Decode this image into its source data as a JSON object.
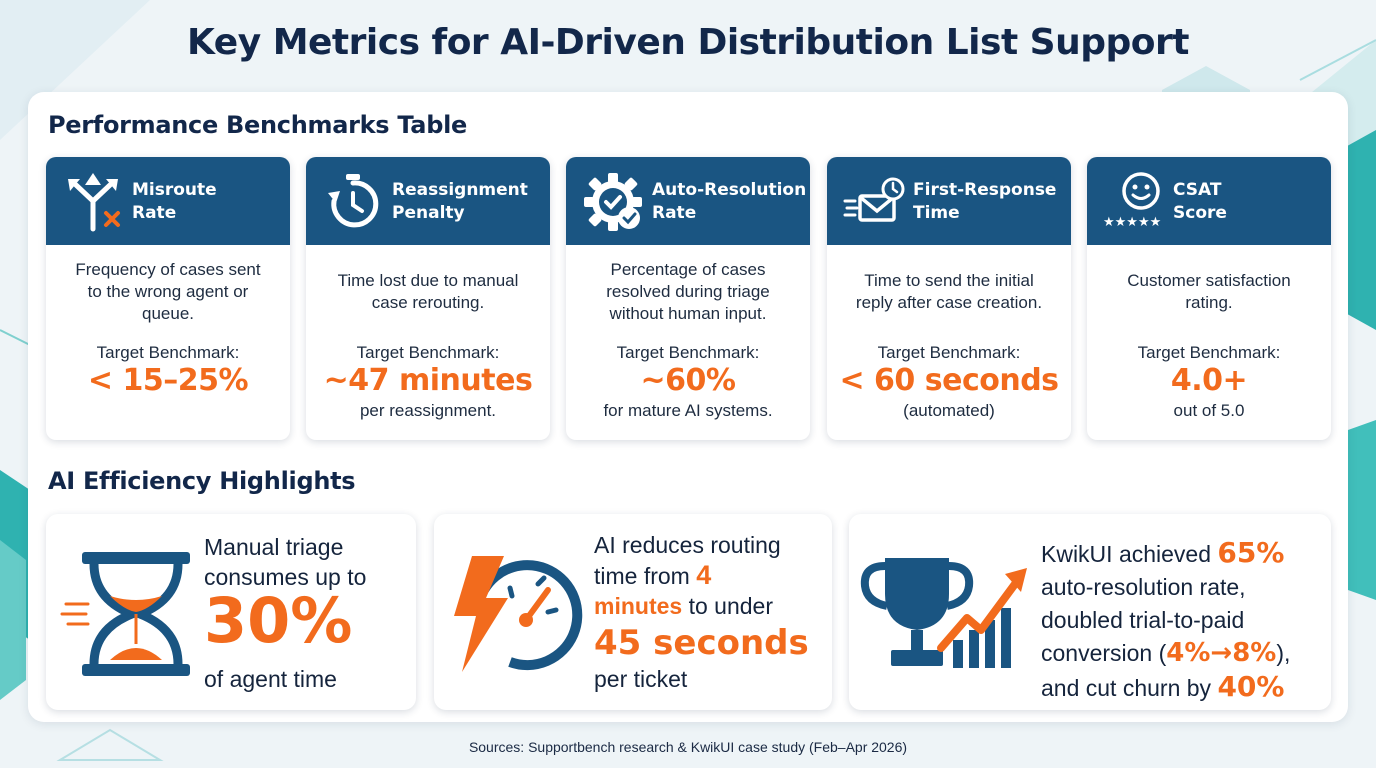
{
  "title": "Key Metrics for AI-Driven Distribution List Support",
  "benchmarks": {
    "section_title": "Performance Benchmarks Table",
    "target_label": "Target Benchmark:",
    "cards": [
      {
        "icon": "split-arrows-icon",
        "line1": "Misroute",
        "line2": "Rate",
        "desc": [
          "Frequency of cases sent",
          "to the wrong agent or",
          "queue."
        ],
        "value": "< 15–25%",
        "sub": ""
      },
      {
        "icon": "stopwatch-icon",
        "line1": "Reassignment",
        "line2": "Penalty",
        "desc": [
          "Time lost due to manual",
          "case rerouting."
        ],
        "value": "~47 minutes",
        "sub": "per reassignment."
      },
      {
        "icon": "gear-check-icon",
        "line1": "Auto-Resolution",
        "line2": "Rate",
        "desc": [
          "Percentage of cases",
          "resolved during triage",
          "without human input."
        ],
        "value": "~60%",
        "sub": "for mature AI systems."
      },
      {
        "icon": "fast-mail-icon",
        "line1": "First-Response",
        "line2": "Time",
        "desc": [
          "Time to send the initial",
          "reply after case creation."
        ],
        "value": "< 60 seconds",
        "sub": "(automated)"
      },
      {
        "icon": "smiley-stars-icon",
        "line1": "CSAT",
        "line2": "Score",
        "desc": [
          "Customer satisfaction",
          "rating."
        ],
        "value": "4.0+",
        "sub": "out of 5.0"
      }
    ]
  },
  "highlights": {
    "section_title": "AI Efficiency Highlights",
    "h1": {
      "icon": "hourglass-icon",
      "line1": "Manual triage",
      "line2": "consumes up to",
      "big": "30%",
      "line3": "of agent time"
    },
    "h2": {
      "icon": "lightning-speedometer-icon",
      "line1": "AI reduces routing",
      "t1": "time from ",
      "o1": "4",
      "o2": "minutes",
      "t2": " to under",
      "big": "45 seconds",
      "line4": "per ticket"
    },
    "h3": {
      "icon": "trophy-growth-icon",
      "t1": "KwikUI achieved ",
      "o1": "65%",
      "line2": "auto-resolution rate,",
      "line3": "doubled trial-to-paid",
      "t4": "conversion (",
      "o4": "4%→8%",
      "t4b": "),",
      "t5": "and cut churn by ",
      "o5": "40%"
    }
  },
  "colors": {
    "navy": "#1a5582",
    "orange": "#f26b1d",
    "title": "#12274a"
  },
  "source": "Sources: Supportbench research & KwikUI case study (Feb–Apr 2026)"
}
